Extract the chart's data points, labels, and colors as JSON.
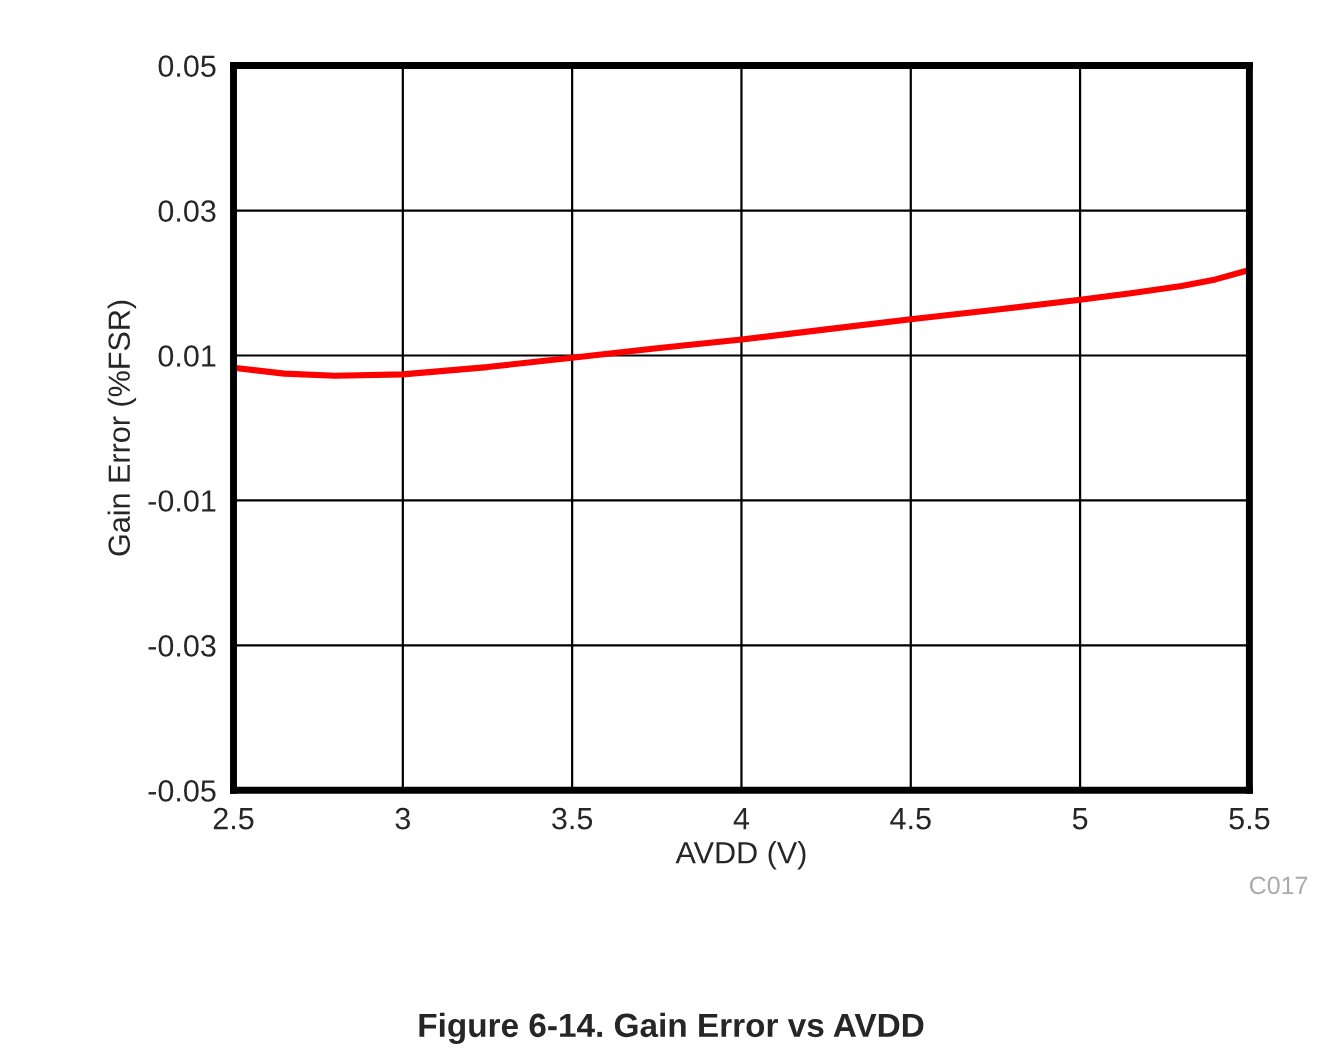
{
  "chart_data": {
    "type": "line",
    "title": "Figure 6-14. Gain Error vs AVDD",
    "xlabel": "AVDD (V)",
    "ylabel": "Gain Error (%FSR)",
    "x": [
      2.5,
      2.65,
      2.8,
      3.0,
      3.25,
      3.5,
      3.75,
      4.0,
      4.25,
      4.5,
      4.75,
      5.0,
      5.15,
      5.3,
      5.4,
      5.5
    ],
    "series": [
      {
        "color": "#ff0000",
        "values": [
          0.0083,
          0.0075,
          0.0072,
          0.0074,
          0.0084,
          0.0097,
          0.011,
          0.0122,
          0.0136,
          0.015,
          0.0163,
          0.0177,
          0.0186,
          0.0196,
          0.0205,
          0.0218
        ]
      }
    ],
    "xlim": [
      2.5,
      5.5
    ],
    "xticks": [
      2.5,
      3,
      3.5,
      4,
      4.5,
      5,
      5.5
    ],
    "ylim": [
      -0.05,
      0.05
    ],
    "yticks": [
      {
        "value": -0.05,
        "label": "-0.05"
      },
      {
        "value": -0.03,
        "label": "-0.03"
      },
      {
        "value": -0.01,
        "label": "-0.01"
      },
      0.01,
      0.03,
      0.05
    ],
    "grid": true,
    "line_style": "solid",
    "marker": "none",
    "annotations": [
      "C017"
    ]
  }
}
